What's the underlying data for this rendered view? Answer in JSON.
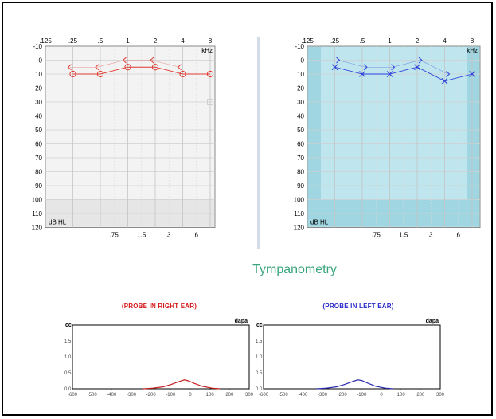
{
  "chart_data": [
    {
      "type": "line",
      "panel": "right-ear-audiogram",
      "x_tick_labels_top": [
        ".125",
        ".25",
        ".5",
        "1",
        "2",
        "4",
        "8"
      ],
      "x_tick_labels_bottom": [
        ".75",
        "1.5",
        "3",
        "6"
      ],
      "x_unit": "kHz",
      "y_unit": "dB HL",
      "y_tick_labels": [
        "-10",
        "0",
        "10",
        "20",
        "30",
        "40",
        "50",
        "60",
        "70",
        "80",
        "90",
        "100",
        "110",
        "120"
      ],
      "ylim": [
        -10,
        120
      ],
      "y_inverted": true,
      "background": "#f3f3f3",
      "shade_color": "#e6e6e6",
      "shade_from_db": 100,
      "color": "#e0382f",
      "series": [
        {
          "marker": "circle",
          "x": [
            ".25",
            ".5",
            "1",
            "2",
            "4",
            "8"
          ],
          "values": [
            10,
            10,
            5,
            5,
            10,
            10
          ]
        },
        {
          "marker": "bracket-left",
          "x": [
            ".25",
            ".5",
            "1",
            "2",
            "4"
          ],
          "values": [
            5,
            5,
            0,
            0,
            5
          ]
        }
      ],
      "extra_marker": {
        "shape": "square",
        "x": "8",
        "value": 30
      }
    },
    {
      "type": "line",
      "panel": "left-ear-audiogram",
      "x_tick_labels_top": [
        ".125",
        ".25",
        ".5",
        "1",
        "2",
        "4",
        "8"
      ],
      "x_tick_labels_bottom": [
        ".75",
        "1.5",
        "3",
        "6"
      ],
      "x_unit": "kHz",
      "y_unit": "dB HL",
      "y_tick_labels": [
        "-10",
        "0",
        "10",
        "20",
        "30",
        "40",
        "50",
        "60",
        "70",
        "80",
        "90",
        "100",
        "110",
        "120"
      ],
      "ylim": [
        -10,
        120
      ],
      "y_inverted": true,
      "background": "#bfe6ee",
      "shade_color": "#9fd6e2",
      "shade_from_db": 100,
      "color": "#2c3fd9",
      "series": [
        {
          "marker": "cross",
          "x": [
            ".25",
            ".5",
            "1",
            "2",
            "4",
            "8"
          ],
          "values": [
            5,
            10,
            10,
            5,
            15,
            10
          ]
        },
        {
          "marker": "bracket-right",
          "x": [
            ".25",
            ".5",
            "1",
            "2",
            "4"
          ],
          "values": [
            0,
            5,
            5,
            0,
            10
          ]
        }
      ]
    },
    {
      "type": "line",
      "panel": "tymp-right",
      "ylabel": "cc",
      "xlabel": "dapa",
      "x_tick_labels": [
        "-600",
        "-500",
        "-400",
        "-300",
        "-200",
        "-100",
        "0",
        "100",
        "200",
        "300"
      ],
      "y_tick_labels": [
        "1.5",
        "1.0",
        "0.5",
        "0.0"
      ],
      "xlim": [
        -600,
        300
      ],
      "ylim": [
        0,
        2
      ],
      "color": "#c42020",
      "points": [
        [
          -240,
          0.0
        ],
        [
          -190,
          0.02
        ],
        [
          -140,
          0.06
        ],
        [
          -100,
          0.13
        ],
        [
          -60,
          0.22
        ],
        [
          -30,
          0.28
        ],
        [
          -10,
          0.25
        ],
        [
          20,
          0.17
        ],
        [
          60,
          0.08
        ],
        [
          110,
          0.02
        ],
        [
          150,
          0.0
        ]
      ]
    },
    {
      "type": "line",
      "panel": "tymp-left",
      "ylabel": "cc",
      "xlabel": "dapa",
      "x_tick_labels": [
        "-600",
        "-500",
        "-400",
        "-300",
        "-200",
        "-100",
        "0",
        "100",
        "200",
        "300"
      ],
      "y_tick_labels": [
        "1.5",
        "1.0",
        "0.5",
        "0.0"
      ],
      "xlim": [
        -600,
        300
      ],
      "ylim": [
        0,
        2
      ],
      "color": "#2a2ab0",
      "points": [
        [
          -330,
          0.0
        ],
        [
          -280,
          0.02
        ],
        [
          -230,
          0.06
        ],
        [
          -190,
          0.13
        ],
        [
          -150,
          0.22
        ],
        [
          -120,
          0.28
        ],
        [
          -100,
          0.26
        ],
        [
          -70,
          0.18
        ],
        [
          -30,
          0.08
        ],
        [
          20,
          0.02
        ],
        [
          60,
          0.0
        ]
      ]
    }
  ],
  "tympanometry": {
    "title": "Tympanometry",
    "probe_right": "(PROBE IN RIGHT EAR)",
    "probe_left": "(PROBE IN LEFT EAR)"
  }
}
